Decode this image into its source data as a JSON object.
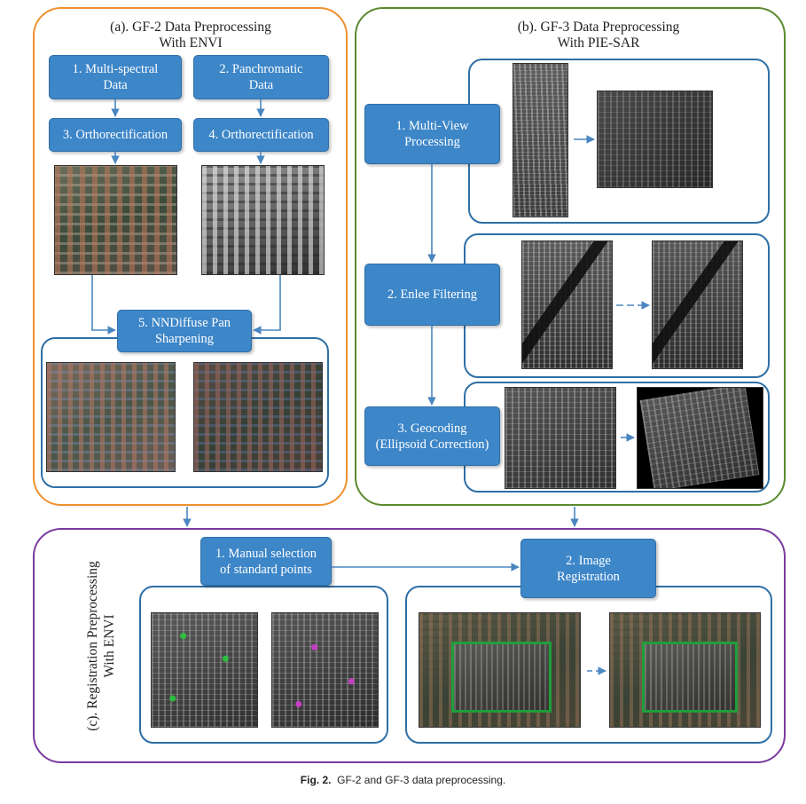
{
  "panel_a": {
    "title": "(a). GF-2 Data Preprocessing\nWith ENVI",
    "steps": {
      "s1": "1. Multi-spectral\nData",
      "s2": "2. Panchromatic\nData",
      "s3": "3. Orthorectification",
      "s4": "4. Orthorectification",
      "s5": "5. NNDiffuse Pan\nSharpening"
    }
  },
  "panel_b": {
    "title": "(b). GF-3 Data Preprocessing\nWith PIE-SAR",
    "steps": {
      "s1": "1. Multi-View\nProcessing",
      "s2": "2. Enlee Filtering",
      "s3": "3. Geocoding\n(Ellipsoid Correction)"
    }
  },
  "panel_c": {
    "title": "(c). Registration Preprocessing\nWith ENVI",
    "steps": {
      "s1": "1. Manual selection\nof standard points",
      "s2": "2. Image\nRegistration"
    }
  },
  "caption": {
    "label": "Fig. 2.",
    "text": "GF-2 and GF-3 data preprocessing."
  },
  "colors": {
    "panel_a_border": "#f0902e",
    "panel_b_border": "#5a8a2e",
    "panel_c_border": "#7a3a9e",
    "step_fill": "#3d86c8",
    "subbox_border": "#2e6fa6",
    "registration_box": "#1f9e3a"
  }
}
